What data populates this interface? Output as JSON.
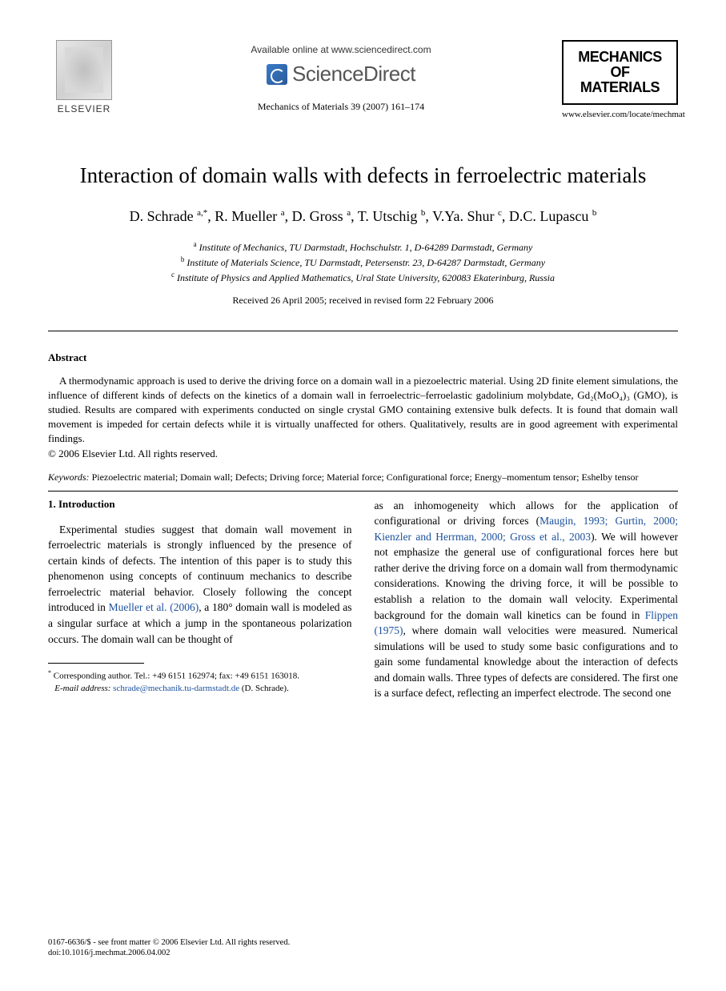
{
  "header": {
    "publisher_name": "ELSEVIER",
    "available_text": "Available online at www.sciencedirect.com",
    "sciencedirect_label": "ScienceDirect",
    "journal_reference": "Mechanics of Materials 39 (2007) 161–174",
    "journal_logo_line1": "MECHANICS",
    "journal_logo_line2": "OF",
    "journal_logo_line3": "MATERIALS",
    "journal_url": "www.elsevier.com/locate/mechmat"
  },
  "article": {
    "title": "Interaction of domain walls with defects in ferroelectric materials",
    "authors_prefix": "D. Schrade ",
    "authors_sup1": "a,*",
    "authors_mid1": ", R. Mueller ",
    "authors_sup2": "a",
    "authors_mid2": ", D. Gross ",
    "authors_sup3": "a",
    "authors_mid3": ", T. Utschig ",
    "authors_sup4": "b",
    "authors_mid4": ", V.Ya. Shur ",
    "authors_sup5": "c",
    "authors_mid5": ", D.C. Lupascu ",
    "authors_sup6": "b",
    "affiliation_a": "Institute of Mechanics, TU Darmstadt, Hochschulstr. 1, D-64289 Darmstadt, Germany",
    "affiliation_b": "Institute of Materials Science, TU Darmstadt, Petersenstr. 23, D-64287 Darmstadt, Germany",
    "affiliation_c": "Institute of Physics and Applied Mathematics, Ural State University, 620083 Ekaterinburg, Russia",
    "dates": "Received 26 April 2005; received in revised form 22 February 2006"
  },
  "abstract": {
    "heading": "Abstract",
    "text": "A thermodynamic approach is used to derive the driving force on a domain wall in a piezoelectric material. Using 2D finite element simulations, the influence of different kinds of defects on the kinetics of a domain wall in ferroelectric–ferroelastic gadolinium molybdate, Gd₂(MoO₄)₃ (GMO), is studied. Results are compared with experiments conducted on single crystal GMO containing extensive bulk defects. It is found that domain wall movement is impeded for certain defects while it is virtually unaffected for others. Qualitatively, results are in good agreement with experimental findings.",
    "copyright": "© 2006 Elsevier Ltd. All rights reserved."
  },
  "keywords": {
    "label": "Keywords:",
    "text": " Piezoelectric material; Domain wall; Defects; Driving force; Material force; Configurational force; Energy–momentum tensor; Eshelby tensor"
  },
  "body": {
    "section_heading": "1. Introduction",
    "col1_part1": "Experimental studies suggest that domain wall movement in ferroelectric materials is strongly influenced by the presence of certain kinds of defects. The intention of this paper is to study this phenomenon using concepts of continuum mechanics to describe ferroelectric material behavior. Closely following the concept introduced in ",
    "col1_cite1": "Mueller et al. (2006)",
    "col1_part2": ", a 180° domain wall is modeled as a singular surface at which a jump in the spontaneous polarization occurs. The domain wall can be thought of",
    "col2_part1": "as an inhomogeneity which allows for the application of configurational or driving forces (",
    "col2_cite1": "Maugin, 1993; Gurtin, 2000; Kienzler and Herrman, 2000; Gross et al., 2003",
    "col2_part2": "). We will however not emphasize the general use of configurational forces here but rather derive the driving force on a domain wall from thermodynamic considerations. Knowing the driving force, it will be possible to establish a relation to the domain wall velocity. Experimental background for the domain wall kinetics can be found in ",
    "col2_cite2": "Flippen (1975)",
    "col2_part3": ", where domain wall velocities were measured. Numerical simulations will be used to study some basic configurations and to gain some fundamental knowledge about the interaction of defects and domain walls. Three types of defects are considered. The first one is a surface defect, reflecting an imperfect electrode. The second one"
  },
  "footnote": {
    "corresponding": "Corresponding author. Tel.: +49 6151 162974; fax: +49 6151 163018.",
    "email_label": "E-mail address:",
    "email": "schrade@mechanik.tu-darmstadt.de",
    "email_suffix": " (D. Schrade)."
  },
  "footer": {
    "issn_line": "0167-6636/$ - see front matter © 2006 Elsevier Ltd. All rights reserved.",
    "doi_line": "doi:10.1016/j.mechmat.2006.04.002"
  },
  "colors": {
    "text": "#000000",
    "link": "#1a4f9c",
    "background": "#ffffff"
  },
  "typography": {
    "title_fontsize": 27,
    "author_fontsize": 18,
    "body_fontsize": 13.5,
    "abstract_fontsize": 13,
    "footnote_fontsize": 11
  }
}
